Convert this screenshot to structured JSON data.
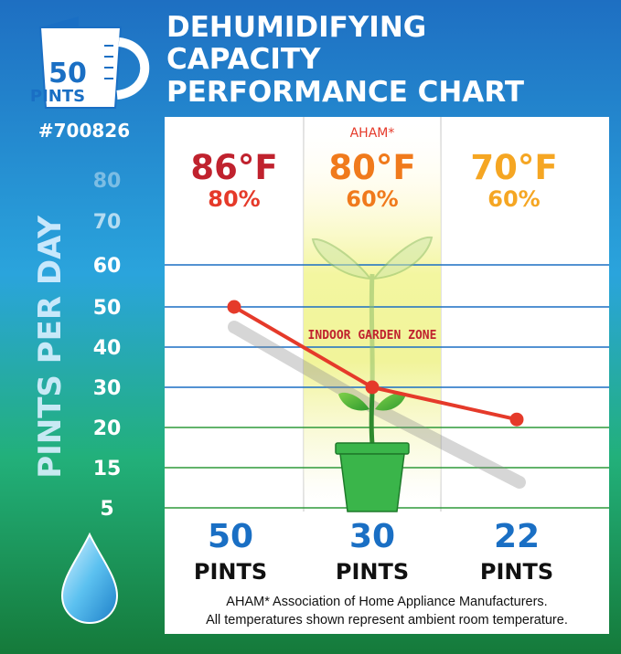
{
  "badge": {
    "number": "50",
    "unit": "PINTS",
    "model": "#700826"
  },
  "title_lines": [
    "DEHUMIDIFYING",
    "CAPACITY",
    "PERFORMANCE CHART"
  ],
  "colors": {
    "red": "#e53a2a",
    "dark_red": "#c0222e",
    "orange": "#f07a1c",
    "amber": "#f5a623",
    "blue": "#1a6fc4",
    "green_line": "#2e9a3a",
    "pot_green": "#3ab54a"
  },
  "aham_label": "AHAM*",
  "garden_zone_label": "INDOOR GARDEN ZONE",
  "footnote": [
    "AHAM* Association of Home Appliance Manufacturers.",
    "All temperatures shown represent ambient room temperature."
  ],
  "chart_data": {
    "type": "line",
    "ylabel": "PINTS PER DAY",
    "y_ticks": [
      "80",
      "70",
      "60",
      "50",
      "40",
      "30",
      "20",
      "15",
      "5"
    ],
    "gridlines_at_ticks": [
      "60",
      "50",
      "40",
      "30",
      "20",
      "15",
      "5"
    ],
    "grid": true,
    "categories": [
      {
        "temp": "86°F",
        "humidity": "80%",
        "value_label": "50",
        "unit": "PINTS"
      },
      {
        "temp": "80°F",
        "humidity": "60%",
        "value_label": "30",
        "unit": "PINTS"
      },
      {
        "temp": "70°F",
        "humidity": "60%",
        "value_label": "22",
        "unit": "PINTS"
      }
    ],
    "series": [
      {
        "values": [
          50,
          30,
          22
        ],
        "color": "#e53a2a"
      }
    ],
    "highlight_category": 1
  }
}
